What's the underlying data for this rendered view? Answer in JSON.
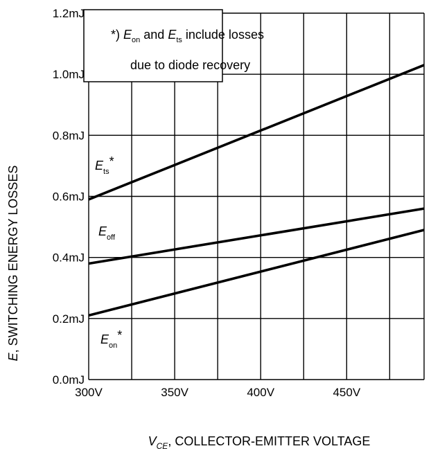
{
  "chart_data": {
    "type": "line",
    "xlabel": "V_CE, COLLECTOR-EMITTER VOLTAGE",
    "ylabel": "E, SWITCHING ENERGY LOSSES",
    "x_ticks": [
      "300V",
      "350V",
      "400V",
      "450V"
    ],
    "y_ticks": [
      "0.0mJ",
      "0.2mJ",
      "0.4mJ",
      "0.6mJ",
      "0.8mJ",
      "1.0mJ",
      "1.2mJ"
    ],
    "xlim": [
      300,
      495
    ],
    "ylim": [
      0,
      1.2
    ],
    "grid": true,
    "note": {
      "line1": "*) E_on and E_ts include losses",
      "line2": "due to diode recovery"
    },
    "series": [
      {
        "name": "E_ts*",
        "x": [
          300,
          495
        ],
        "y": [
          0.59,
          1.03
        ]
      },
      {
        "name": "E_off",
        "x": [
          300,
          495
        ],
        "y": [
          0.38,
          0.56
        ]
      },
      {
        "name": "E_on*",
        "x": [
          300,
          495
        ],
        "y": [
          0.21,
          0.49
        ]
      }
    ]
  }
}
